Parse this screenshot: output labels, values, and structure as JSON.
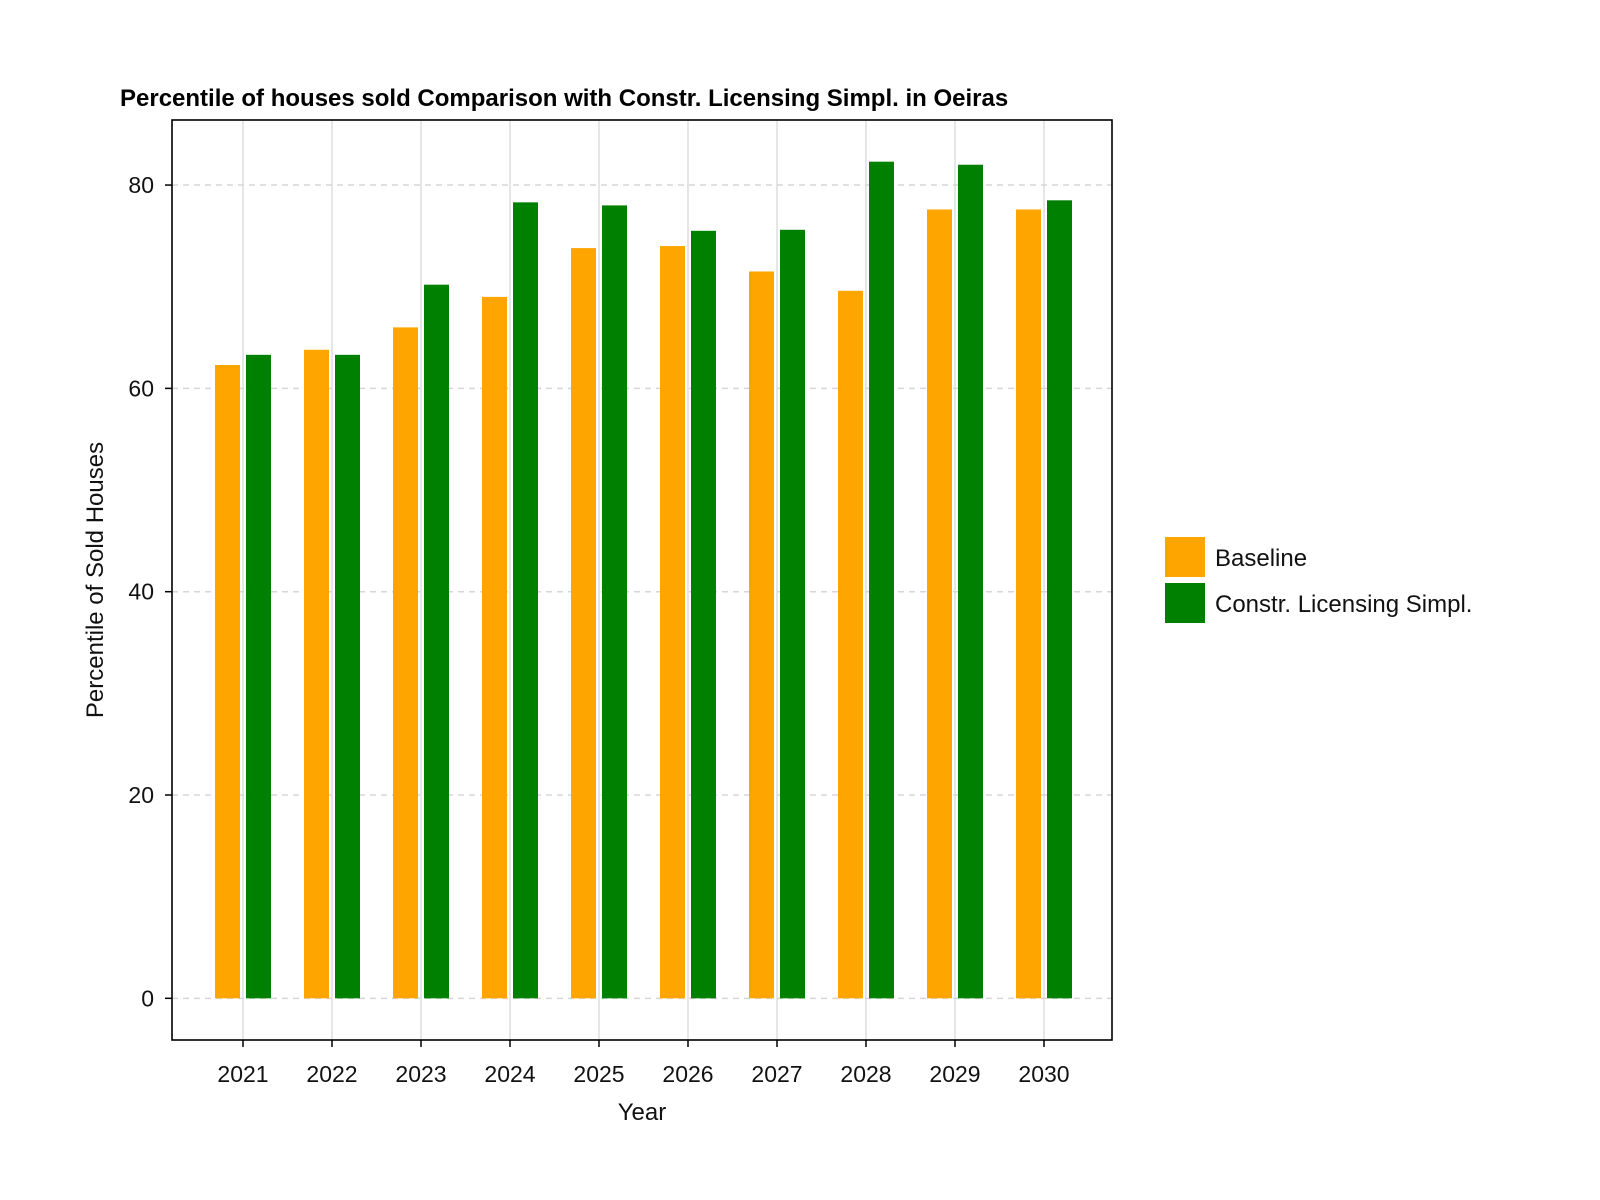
{
  "chart_data": {
    "type": "bar",
    "title": "Percentile of houses sold Comparison with Constr. Licensing Simpl. in Oeiras",
    "xlabel": "Year",
    "ylabel": "Percentile of Sold Houses",
    "categories": [
      "2021",
      "2022",
      "2023",
      "2024",
      "2025",
      "2026",
      "2027",
      "2028",
      "2029",
      "2030"
    ],
    "series": [
      {
        "name": "Baseline",
        "color": "#ffa500",
        "values": [
          62.3,
          63.8,
          66.0,
          69.0,
          73.8,
          74.0,
          71.5,
          69.6,
          77.6,
          77.6
        ]
      },
      {
        "name": "Constr. Licensing Simpl.",
        "color": "#008000",
        "values": [
          63.3,
          63.3,
          70.2,
          78.3,
          78.0,
          75.5,
          75.6,
          82.3,
          82.0,
          78.5
        ]
      }
    ],
    "ylim": [
      -4.1,
      86.4
    ],
    "yticks": [
      "0",
      "20",
      "40",
      "60",
      "80"
    ],
    "grid": true,
    "legend_position": "right"
  }
}
